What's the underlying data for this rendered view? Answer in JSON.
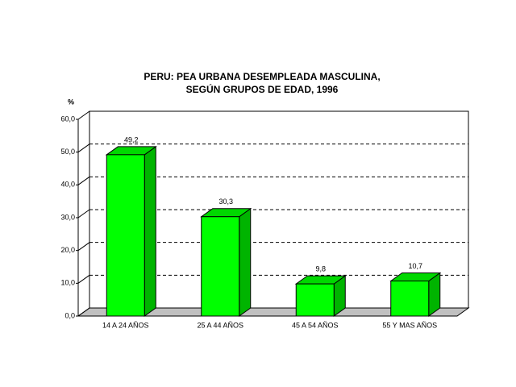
{
  "chart_data": {
    "type": "bar3d",
    "title": [
      "PERU: PEA URBANA DESEMPLEADA MASCULINA,",
      "SEGÚN GRUPOS DE EDAD, 1996"
    ],
    "y_label": "%",
    "categories": [
      "14 A 24 AÑOS",
      "25 A 44 AÑOS",
      "45 A 54 AÑOS",
      "55 Y MAS AÑOS"
    ],
    "values": [
      49.2,
      30.3,
      9.8,
      10.7
    ],
    "value_labels": [
      "49,2",
      "30,3",
      "9,8",
      "10,7"
    ],
    "color": "#00ff00",
    "ylim": [
      0,
      60
    ],
    "yticks": [
      {
        "value": 0,
        "label": "0,0"
      },
      {
        "value": 10,
        "label": "10,0"
      },
      {
        "value": 20,
        "label": "20,0"
      },
      {
        "value": 30,
        "label": "30,0"
      },
      {
        "value": 40,
        "label": "40,0"
      },
      {
        "value": 50,
        "label": "50,0"
      },
      {
        "value": 60,
        "label": "60,0"
      }
    ],
    "grid": true
  }
}
